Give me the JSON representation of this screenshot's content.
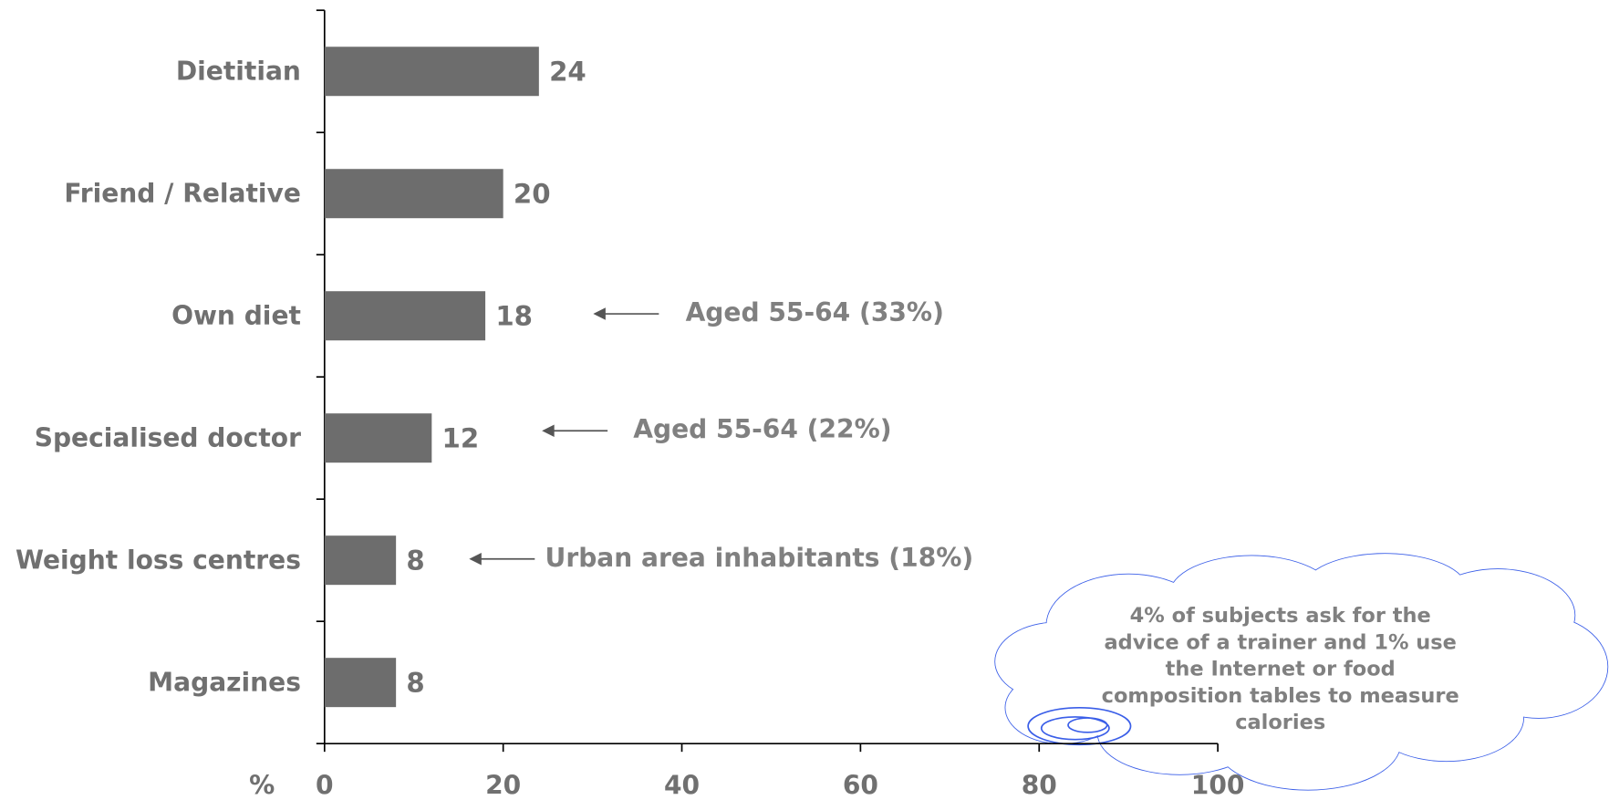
{
  "chart_data": {
    "type": "bar",
    "orientation": "horizontal",
    "categories": [
      "Dietitian",
      "Friend / Relative",
      "Own diet",
      "Specialised doctor",
      "Weight loss centres",
      "Magazines"
    ],
    "values": [
      24,
      20,
      18,
      12,
      8,
      8
    ],
    "color": "#6d6d6d",
    "xlabel": "%",
    "xlim": [
      0,
      100
    ],
    "xticks": [
      0,
      20,
      40,
      60,
      80,
      100
    ],
    "annotations": [
      "Aged 55-64 (33%)",
      "Aged 55-64 (22%)",
      "Urban area inhabitants (18%)"
    ],
    "callout": [
      "4% of subjects ask for the",
      "advice of a trainer and 1% use",
      "the Internet or food",
      "composition tables to measure",
      "calories"
    ]
  }
}
